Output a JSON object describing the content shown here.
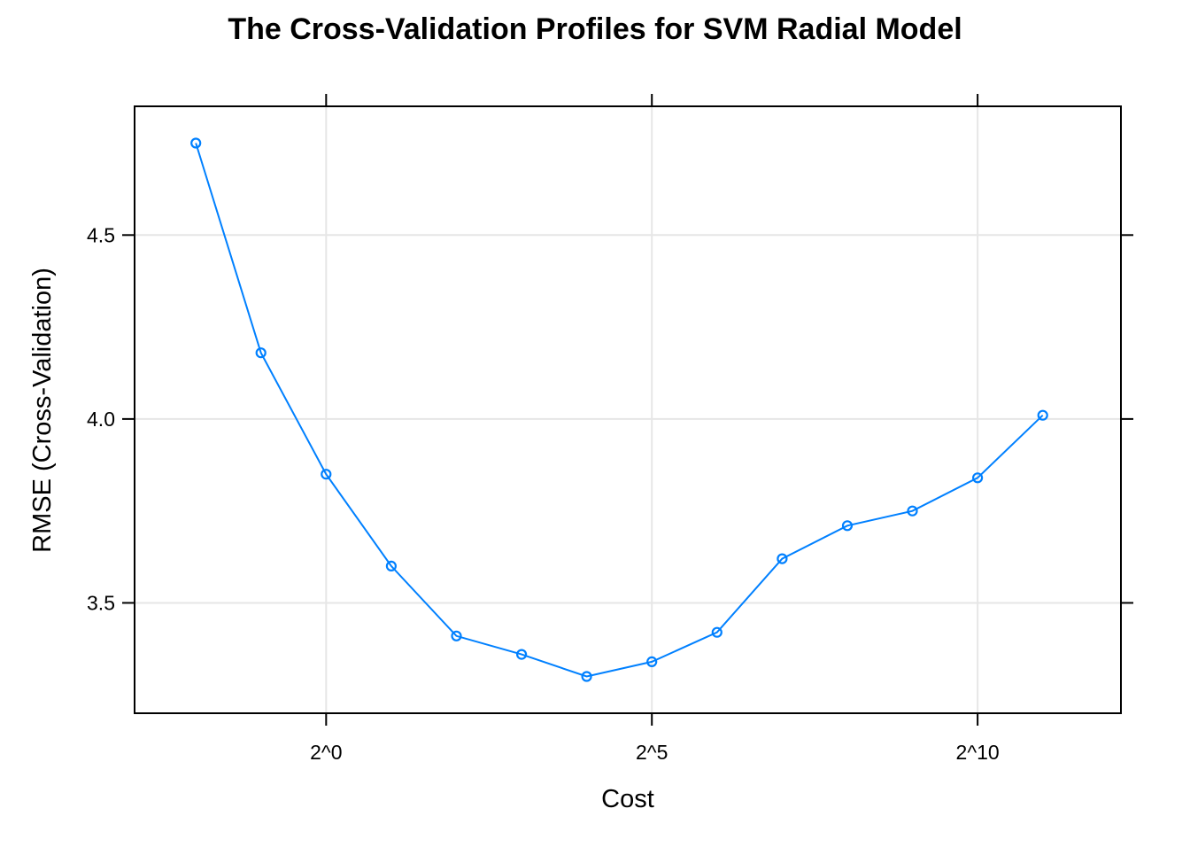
{
  "chart_data": {
    "type": "line",
    "title": "The Cross-Validation Profiles for SVM Radial Model",
    "xlabel": "Cost",
    "ylabel": "RMSE (Cross-Validation)",
    "x_scale": "log2",
    "x": [
      0.25,
      0.5,
      1,
      2,
      4,
      8,
      16,
      32,
      64,
      128,
      256,
      512,
      1024,
      2048
    ],
    "series": [
      {
        "values": [
          4.75,
          4.18,
          3.85,
          3.6,
          3.41,
          3.36,
          3.3,
          3.34,
          3.42,
          3.62,
          3.71,
          3.75,
          3.84,
          4.01
        ]
      }
    ],
    "x_ticks": [
      {
        "value": 1,
        "label": "2^0"
      },
      {
        "value": 32,
        "label": "2^5"
      },
      {
        "value": 1024,
        "label": "2^10"
      }
    ],
    "y_ticks": [
      {
        "value": 3.5,
        "label": "3.5"
      },
      {
        "value": 4.0,
        "label": "4.0"
      },
      {
        "value": 4.5,
        "label": "4.5"
      }
    ],
    "xlim_log2": [
      -2.94,
      12.2
    ],
    "ylim": [
      3.2,
      4.85
    ],
    "grid": true,
    "series_color": "#0080ff",
    "grid_color": "#e6e6e6"
  }
}
